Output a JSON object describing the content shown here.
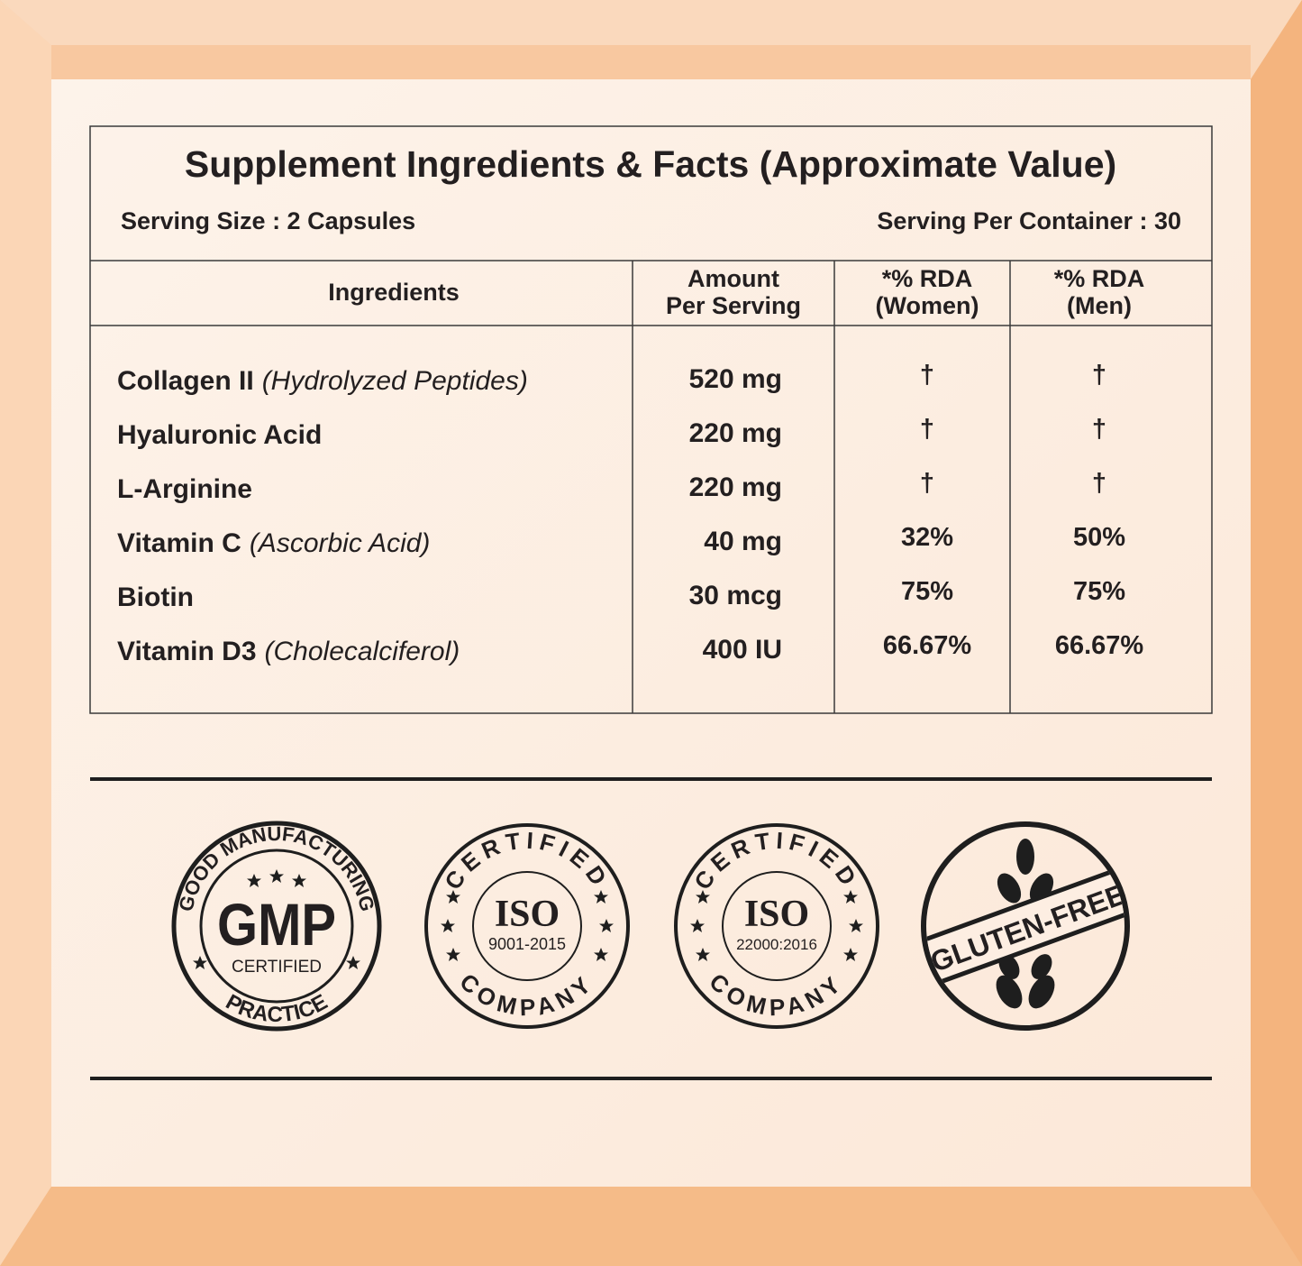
{
  "header": {
    "title": "Supplement Ingredients & Facts (Approximate Value)",
    "serving_size": "Serving Size : 2 Capsules",
    "servings_per_container": "Serving Per Container : 30"
  },
  "table": {
    "headers": [
      [
        "Ingredients"
      ],
      [
        "Amount",
        "Per Serving"
      ],
      [
        "*% RDA",
        "(Women)"
      ],
      [
        "*% RDA",
        "(Men)"
      ]
    ],
    "rows": [
      {
        "name": "Collagen II",
        "detail": "(Hydrolyzed Peptides)",
        "amount": "520 mg",
        "rda_women": "†",
        "rda_men": "†"
      },
      {
        "name": "Hyaluronic Acid",
        "detail": null,
        "amount": "220 mg",
        "rda_women": "†",
        "rda_men": "†"
      },
      {
        "name": "L-Arginine",
        "detail": null,
        "amount": "220 mg",
        "rda_women": "†",
        "rda_men": "†"
      },
      {
        "name": "Vitamin C",
        "detail": "(Ascorbic Acid)",
        "amount": "40 mg",
        "rda_women": "32%",
        "rda_men": "50%"
      },
      {
        "name": "Biotin",
        "detail": null,
        "amount": "30 mcg",
        "rda_women": "75%",
        "rda_men": "75%"
      },
      {
        "name": "Vitamin D3",
        "detail": "(Cholecalciferol)",
        "amount": "400 IU",
        "rda_women": "66.67%",
        "rda_men": "66.67%"
      }
    ]
  },
  "badges": [
    {
      "top": "GOOD MANUFACTURING",
      "main": "GMP",
      "sub": "CERTIFIED",
      "bottom": "PRACTICE"
    },
    {
      "top": "CERTIFIED",
      "main": "ISO",
      "sub": "9001-2015",
      "bottom": "COMPANY"
    },
    {
      "top": "CERTIFIED",
      "main": "ISO",
      "sub": "22000:2016",
      "bottom": "COMPANY"
    },
    {
      "main": "GLUTEN-FREE"
    }
  ]
}
